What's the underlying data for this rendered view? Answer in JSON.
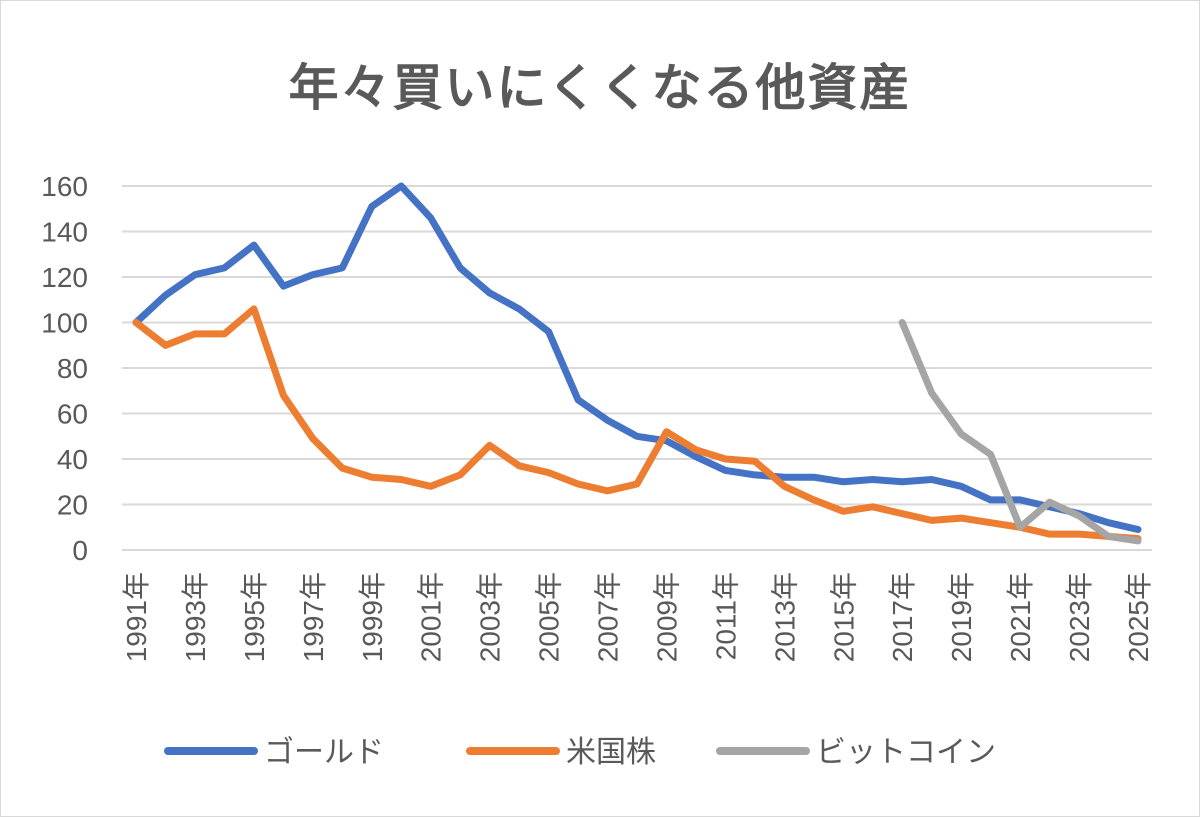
{
  "chart_data": {
    "type": "line",
    "title": "年々買いにくくなる他資産",
    "xlabel": "",
    "ylabel": "",
    "ylim": [
      0,
      160
    ],
    "yticks": [
      "160",
      "140",
      "120",
      "100",
      "80",
      "60",
      "40",
      "20",
      "0"
    ],
    "x": [
      "1991年",
      "1992年",
      "1993年",
      "1994年",
      "1995年",
      "1996年",
      "1997年",
      "1998年",
      "1999年",
      "2000年",
      "2001年",
      "2002年",
      "2003年",
      "2004年",
      "2005年",
      "2006年",
      "2007年",
      "2008年",
      "2009年",
      "2010年",
      "2011年",
      "2012年",
      "2013年",
      "2014年",
      "2015年",
      "2016年",
      "2017年",
      "2018年",
      "2019年",
      "2020年",
      "2021年",
      "2022年",
      "2023年",
      "2024年",
      "2025年"
    ],
    "xticks": [
      "1991年",
      "1993年",
      "1995年",
      "1997年",
      "1999年",
      "2001年",
      "2003年",
      "2005年",
      "2007年",
      "2009年",
      "2011年",
      "2013年",
      "2015年",
      "2017年",
      "2019年",
      "2021年",
      "2023年",
      "2025年"
    ],
    "grid": true,
    "legend_position": "bottom",
    "series": [
      {
        "name": "ゴールド",
        "color": "#4472C4",
        "values": [
          100,
          112,
          121,
          124,
          134,
          116,
          121,
          124,
          151,
          160,
          146,
          124,
          113,
          106,
          96,
          66,
          57,
          50,
          48,
          41,
          35,
          33,
          32,
          32,
          30,
          31,
          30,
          31,
          28,
          22,
          22,
          19,
          16,
          12,
          9
        ]
      },
      {
        "name": "米国株",
        "color": "#ED7D31",
        "values": [
          100,
          90,
          95,
          95,
          106,
          68,
          49,
          36,
          32,
          31,
          28,
          33,
          46,
          37,
          34,
          29,
          26,
          29,
          52,
          44,
          40,
          39,
          28,
          22,
          17,
          19,
          16,
          13,
          14,
          12,
          10,
          7,
          7,
          6,
          5
        ]
      },
      {
        "name": "ビットコイン",
        "color": "#A5A5A5",
        "values": [
          null,
          null,
          null,
          null,
          null,
          null,
          null,
          null,
          null,
          null,
          null,
          null,
          null,
          null,
          null,
          null,
          null,
          null,
          null,
          null,
          null,
          null,
          null,
          null,
          null,
          null,
          100,
          69,
          51,
          42,
          10,
          21,
          15,
          6,
          4
        ]
      }
    ]
  }
}
